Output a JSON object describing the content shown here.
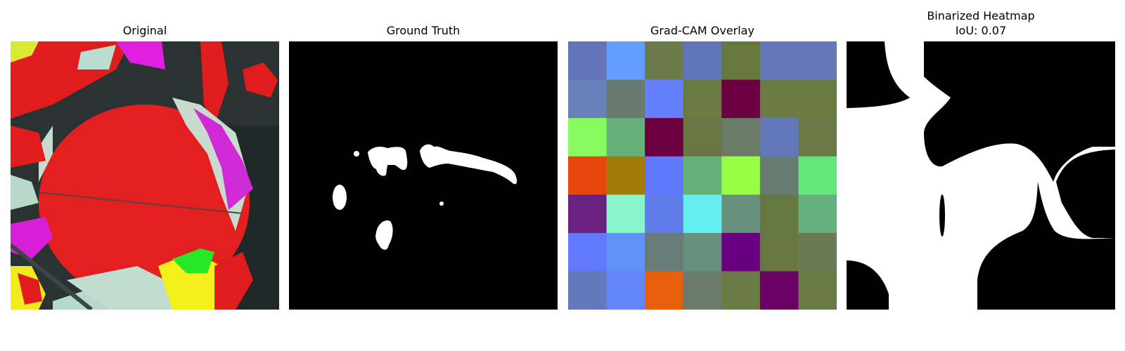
{
  "panels": {
    "original": {
      "title": "Original"
    },
    "ground_truth": {
      "title": "Ground Truth"
    },
    "gradcam": {
      "title": "Grad-CAM Overlay",
      "grid": [
        [
          "#6374b9",
          "#629cfd",
          "#6a7a4a",
          "#6175ba",
          "#67783f",
          "#6578b9",
          "#6578b9"
        ],
        [
          "#6a80bb",
          "#687a70",
          "#637ffb",
          "#6a7a42",
          "#6b0040",
          "#6a7a40",
          "#6a7a40"
        ],
        [
          "#87fb60",
          "#66b07c",
          "#6b0040",
          "#6a7545",
          "#6a7b68",
          "#6378bb",
          "#6b7848"
        ],
        [
          "#e6450b",
          "#a37b06",
          "#6079fc",
          "#66b07c",
          "#99fd48",
          "#687b72",
          "#63e77b"
        ],
        [
          "#6a2281",
          "#87f4cc",
          "#607bea",
          "#65eeef",
          "#66907c",
          "#667842",
          "#64b080"
        ],
        [
          "#6279fd",
          "#6093f8",
          "#687b78",
          "#67907c",
          "#6a0081",
          "#66783f",
          "#6a7a52"
        ],
        [
          "#6479bc",
          "#6285fc",
          "#e75e0b",
          "#6b7b6b",
          "#6a7b45",
          "#6b0065",
          "#6a7a45"
        ]
      ]
    },
    "binarized": {
      "title": "Binarized Heatmap",
      "iou": "IoU: 0.07"
    }
  }
}
